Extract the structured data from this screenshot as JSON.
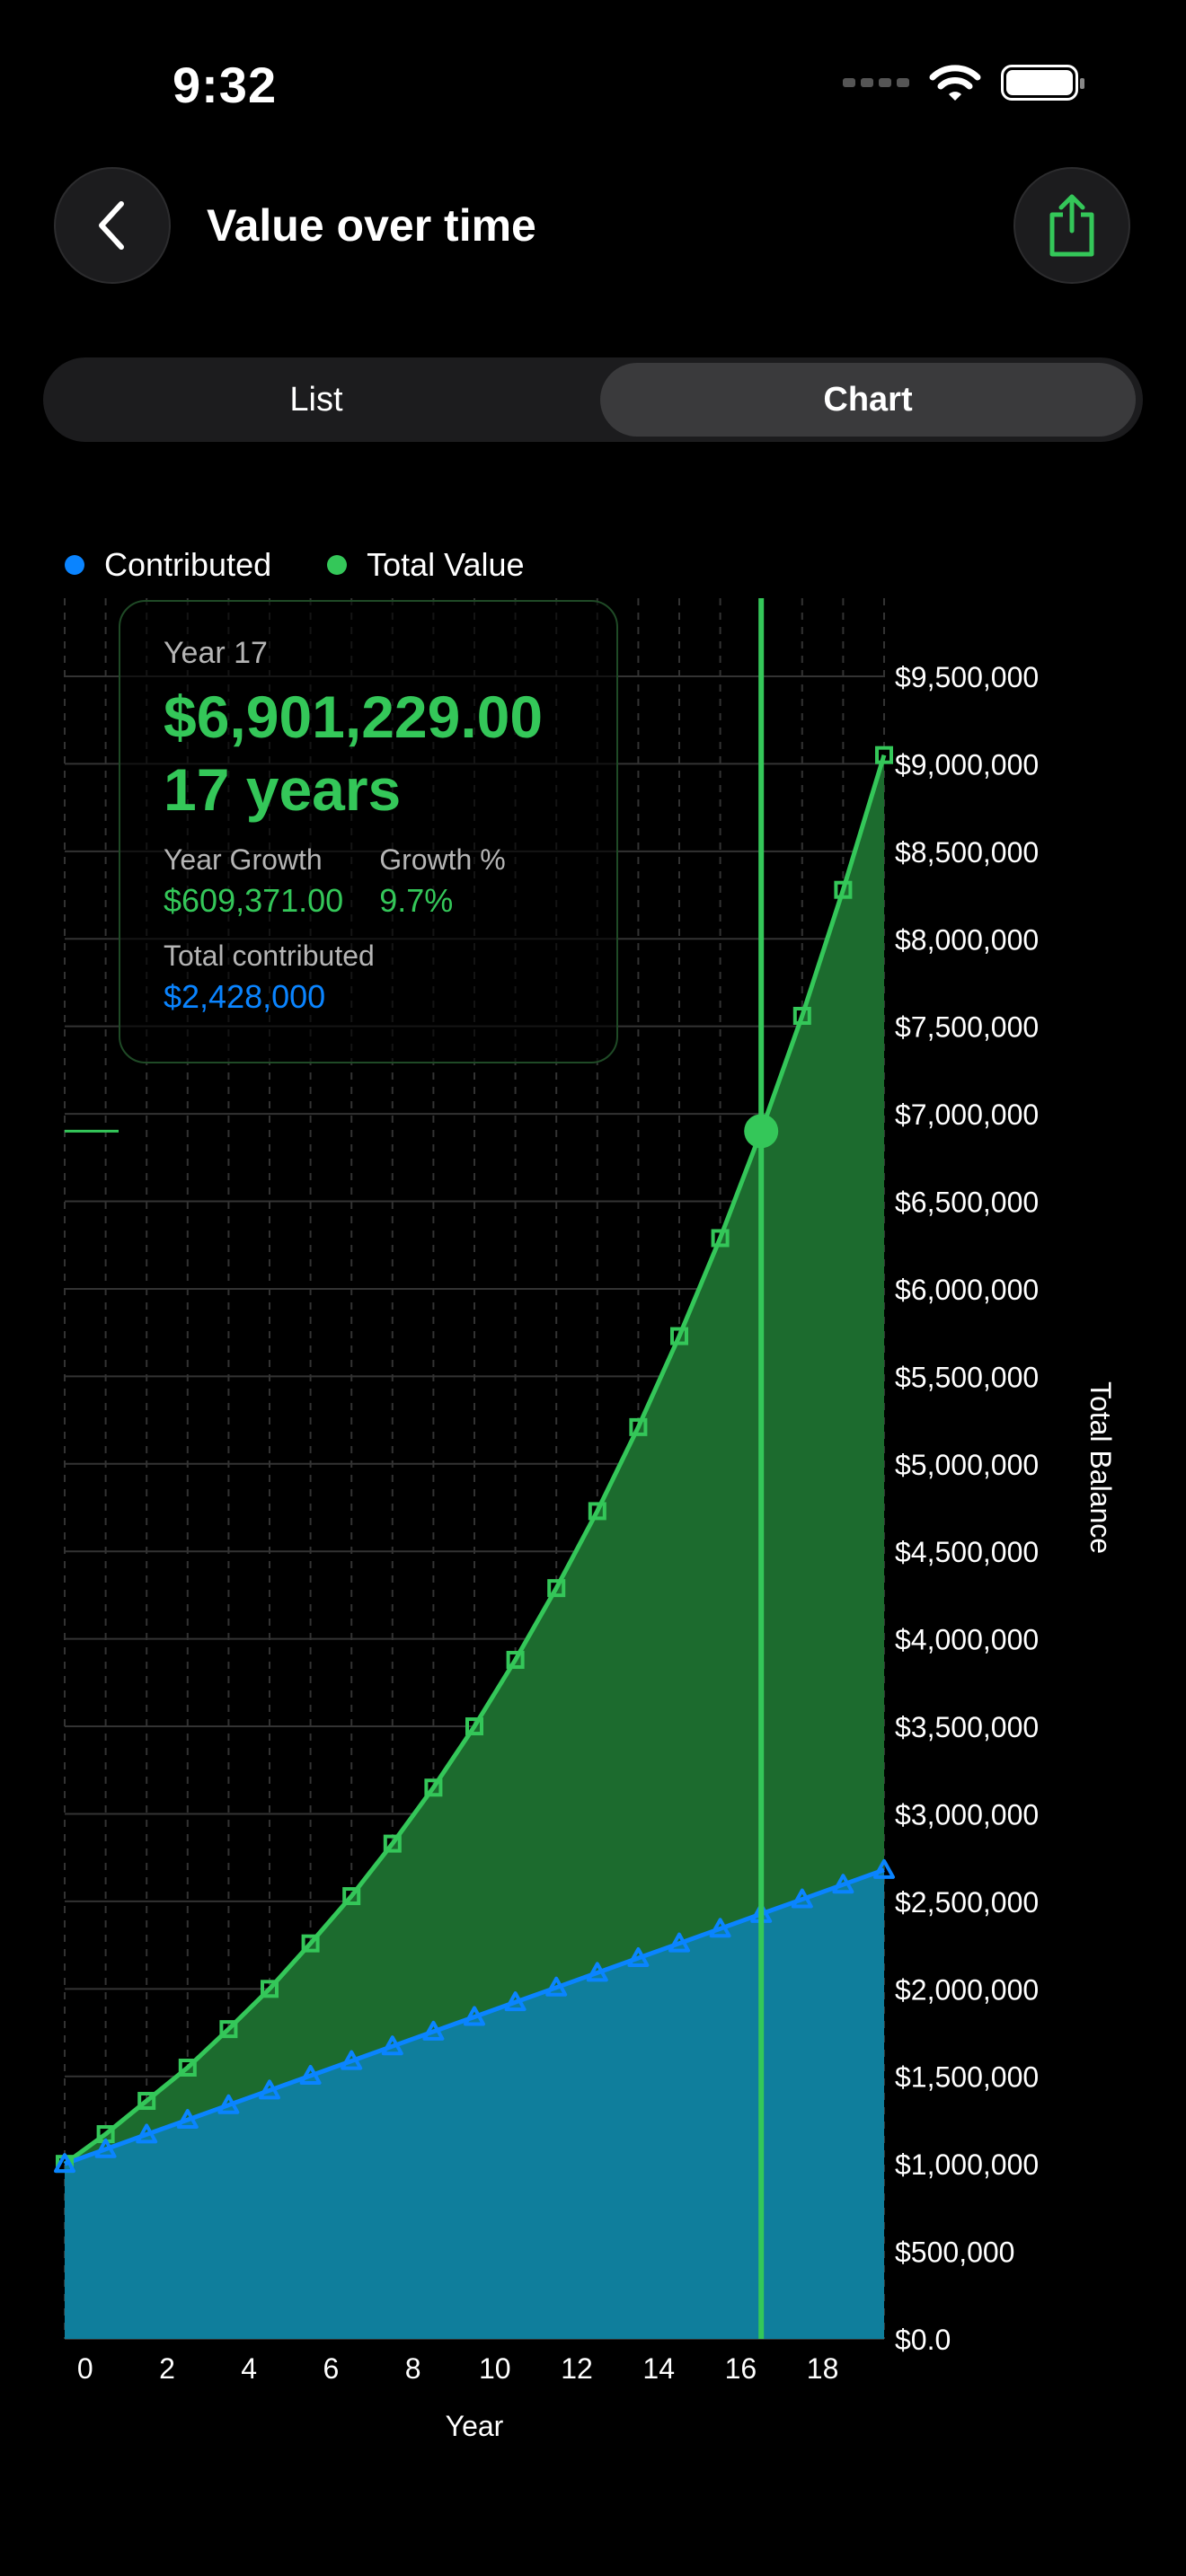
{
  "status": {
    "time": "9:32"
  },
  "header": {
    "title": "Value over time"
  },
  "segmented": {
    "list_label": "List",
    "chart_label": "Chart",
    "selected": "Chart"
  },
  "colors": {
    "contributed": "#0a84ff",
    "total": "#34c759",
    "total_fill": "#1c6b2e",
    "contrib_fill": "#0f7e9c"
  },
  "tooltip": {
    "year_label": "Year 17",
    "value": "$6,901,229.00",
    "years": "17 years",
    "growth_label": "Year Growth",
    "growth_value": "$609,371.00",
    "growth_pct_label": "Growth %",
    "growth_pct_value": "9.7%",
    "contrib_label": "Total contributed",
    "contrib_value": "$2,428,000"
  },
  "chart_data": {
    "type": "area",
    "xlabel": "Year",
    "ylabel": "Total Balance",
    "xlim": [
      -0.5,
      19.5
    ],
    "ylim": [
      0,
      9500000
    ],
    "x": [
      -0.5,
      0.5,
      1.5,
      2.5,
      3.5,
      4.5,
      5.5,
      6.5,
      7.5,
      8.5,
      9.5,
      10.5,
      11.5,
      12.5,
      13.5,
      14.5,
      15.5,
      16.5,
      17.5,
      18.5,
      19.5
    ],
    "xticks": [
      0,
      2,
      4,
      6,
      8,
      10,
      12,
      14,
      16,
      18
    ],
    "yticks": [
      0,
      500000,
      1000000,
      1500000,
      2000000,
      2500000,
      3000000,
      3500000,
      4000000,
      4500000,
      5000000,
      5500000,
      6000000,
      6500000,
      7000000,
      7500000,
      8000000,
      8500000,
      9000000,
      9500000
    ],
    "ytick_labels": [
      "$0.0",
      "$500,000",
      "$1,000,000",
      "$1,500,000",
      "$2,000,000",
      "$2,500,000",
      "$3,000,000",
      "$3,500,000",
      "$4,000,000",
      "$4,500,000",
      "$5,000,000",
      "$5,500,000",
      "$6,000,000",
      "$6,500,000",
      "$7,000,000",
      "$7,500,000",
      "$8,000,000",
      "$8,500,000",
      "$9,000,000",
      "$9,500,000"
    ],
    "legend": "top-left",
    "grid": true,
    "series": [
      {
        "name": "Contributed",
        "values": [
          1000000,
          1084000,
          1168000,
          1252000,
          1336000,
          1420000,
          1504000,
          1588000,
          1672000,
          1756000,
          1840000,
          1924000,
          2008000,
          2092000,
          2176000,
          2260000,
          2344000,
          2428000,
          2512000,
          2596000,
          2680000
        ]
      },
      {
        "name": "Total Value",
        "values": [
          1000000,
          1170000,
          1360000,
          1550000,
          1770000,
          2000000,
          2260000,
          2530000,
          2830000,
          3150000,
          3500000,
          3880000,
          4290000,
          4730000,
          5210000,
          5730000,
          6290000,
          6901229,
          7560000,
          8280000,
          9050000
        ]
      }
    ],
    "selected": {
      "x": 16.5,
      "value": 6901229
    }
  }
}
